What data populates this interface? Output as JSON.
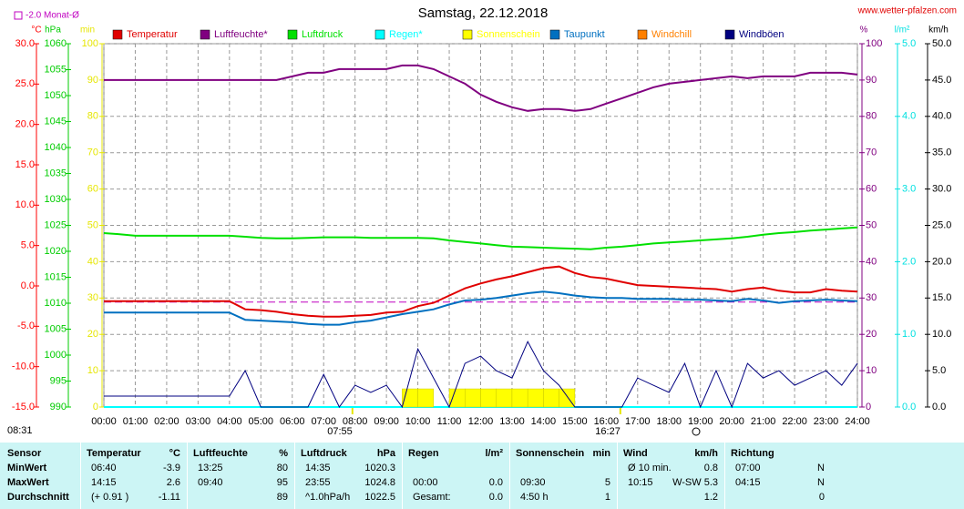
{
  "chart_data": {
    "type": "line",
    "title": "Samstag, 22.12.2018",
    "source": "www.wetter-pfalzen.com",
    "monthly_avg": {
      "value": -2.0,
      "label": "-2.0 Monat-Ø"
    },
    "corner_time": "08:31",
    "sun_markers": [
      {
        "value": 7.9167,
        "label": "07:55"
      },
      {
        "value": 16.45,
        "label": "16:27"
      }
    ],
    "xlim": [
      0,
      24
    ],
    "xticks": [
      {
        "value": 0,
        "label": "00:00"
      },
      {
        "value": 1,
        "label": "01:00"
      },
      {
        "value": 2,
        "label": "02:00"
      },
      {
        "value": 3,
        "label": "03:00"
      },
      {
        "value": 4,
        "label": "04:00"
      },
      {
        "value": 5,
        "label": "05:00"
      },
      {
        "value": 6,
        "label": "06:00"
      },
      {
        "value": 7,
        "label": "07:00"
      },
      {
        "value": 8,
        "label": "08:00"
      },
      {
        "value": 9,
        "label": "09:00"
      },
      {
        "value": 10,
        "label": "10:00"
      },
      {
        "value": 11,
        "label": "11:00"
      },
      {
        "value": 12,
        "label": "12:00"
      },
      {
        "value": 13,
        "label": "13:00"
      },
      {
        "value": 14,
        "label": "14:00"
      },
      {
        "value": 15,
        "label": "15:00"
      },
      {
        "value": 16,
        "label": "16:00"
      },
      {
        "value": 17,
        "label": "17:00"
      },
      {
        "value": 18,
        "label": "18:00"
      },
      {
        "value": 19,
        "label": "19:00"
      },
      {
        "value": 20,
        "label": "20:00"
      },
      {
        "value": 21,
        "label": "21:00"
      },
      {
        "value": 22,
        "label": "22:00"
      },
      {
        "value": 23,
        "label": "23:00"
      },
      {
        "value": 24,
        "label": "24:00"
      }
    ],
    "grid": true,
    "axes": {
      "temp": {
        "label": "°C",
        "color": "#ff0000",
        "lim": [
          -15,
          30
        ],
        "ticks": [
          {
            "value": -15,
            "label": "-15.0"
          },
          {
            "value": -10,
            "label": "-10.0"
          },
          {
            "value": -5,
            "label": "-5.0"
          },
          {
            "value": 0,
            "label": "0.0"
          },
          {
            "value": 5,
            "label": "5.0"
          },
          {
            "value": 10,
            "label": "10.0"
          },
          {
            "value": 15,
            "label": "15.0"
          },
          {
            "value": 20,
            "label": "20.0"
          },
          {
            "value": 25,
            "label": "25.0"
          },
          {
            "value": 30,
            "label": "30.0"
          }
        ]
      },
      "hpa": {
        "label": "hPa",
        "color": "#00cc00",
        "lim": [
          990,
          1060
        ],
        "ticks": [
          990,
          995,
          1000,
          1005,
          1010,
          1015,
          1020,
          1025,
          1030,
          1035,
          1040,
          1045,
          1050,
          1055,
          1060
        ]
      },
      "min": {
        "label": "min",
        "color": "#e6e600",
        "lim": [
          0,
          100
        ],
        "ticks": [
          0,
          10,
          20,
          30,
          40,
          50,
          60,
          70,
          80,
          90,
          100
        ]
      },
      "pct": {
        "label": "%",
        "color": "#800080",
        "lim": [
          0,
          100
        ],
        "ticks": [
          0,
          10,
          20,
          30,
          40,
          50,
          60,
          70,
          80,
          90,
          100
        ]
      },
      "rain": {
        "label": "l/m²",
        "color": "#00e0e0",
        "lim": [
          0,
          5
        ],
        "ticks": [
          {
            "value": 0,
            "label": "0.0"
          },
          {
            "value": 1,
            "label": "1.0"
          },
          {
            "value": 2,
            "label": "2.0"
          },
          {
            "value": 3,
            "label": "3.0"
          },
          {
            "value": 4,
            "label": "4.0"
          },
          {
            "value": 5,
            "label": "5.0"
          }
        ]
      },
      "kmh": {
        "label": "km/h",
        "color": "#000000",
        "lim": [
          0,
          50
        ],
        "ticks": [
          {
            "value": 0,
            "label": "0.0"
          },
          {
            "value": 5,
            "label": "5.0"
          },
          {
            "value": 10,
            "label": "10.0"
          },
          {
            "value": 15,
            "label": "15.0"
          },
          {
            "value": 20,
            "label": "20.0"
          },
          {
            "value": 25,
            "label": "25.0"
          },
          {
            "value": 30,
            "label": "30.0"
          },
          {
            "value": 35,
            "label": "35.0"
          },
          {
            "value": 40,
            "label": "40.0"
          },
          {
            "value": 45,
            "label": "45.0"
          },
          {
            "value": 50,
            "label": "50.0"
          }
        ]
      }
    },
    "x": [
      0,
      0.5,
      1,
      1.5,
      2,
      2.5,
      3,
      3.5,
      4,
      4.5,
      5,
      5.5,
      6,
      6.5,
      7,
      7.5,
      8,
      8.5,
      9,
      9.5,
      10,
      10.5,
      11,
      11.5,
      12,
      12.5,
      13,
      13.5,
      14,
      14.5,
      15,
      15.5,
      16,
      16.5,
      17,
      17.5,
      18,
      18.5,
      19,
      19.5,
      20,
      20.5,
      21,
      21.5,
      22,
      22.5,
      23,
      23.5,
      24
    ],
    "series": [
      {
        "name": "Temperatur",
        "color": "#e00000",
        "axis": "temp",
        "values": [
          -1.9,
          -1.9,
          -1.9,
          -1.9,
          -1.9,
          -1.9,
          -1.9,
          -1.9,
          -1.9,
          -2.9,
          -3.0,
          -3.2,
          -3.5,
          -3.7,
          -3.8,
          -3.8,
          -3.7,
          -3.6,
          -3.3,
          -3.2,
          -2.5,
          -2.1,
          -1.2,
          -0.3,
          0.3,
          0.8,
          1.2,
          1.7,
          2.2,
          2.4,
          1.6,
          1.1,
          0.9,
          0.5,
          0.1,
          0,
          -0.1,
          -0.2,
          -0.3,
          -0.4,
          -0.7,
          -0.4,
          -0.2,
          -0.6,
          -0.8,
          -0.8,
          -0.4,
          -0.6,
          -0.7
        ]
      },
      {
        "name": "Luftfeuchte*",
        "color": "#800080",
        "axis": "pct",
        "values": [
          90,
          90,
          90,
          90,
          90,
          90,
          90,
          90,
          90,
          90,
          90,
          90,
          91,
          92,
          92,
          93,
          93,
          93,
          93,
          94,
          94,
          93,
          91,
          89,
          86,
          84,
          82.5,
          81.5,
          82,
          82,
          81.5,
          82,
          83.5,
          85,
          86.5,
          88,
          89,
          89.5,
          90,
          90.5,
          91,
          90.5,
          91,
          91,
          91,
          92,
          92,
          92,
          91.5
        ]
      },
      {
        "name": "Luftdruck",
        "color": "#00e000",
        "axis": "hpa",
        "values": [
          1023.5,
          1023.3,
          1023.0,
          1023.0,
          1023.0,
          1023.0,
          1023.0,
          1023.0,
          1023.0,
          1022.8,
          1022.6,
          1022.5,
          1022.5,
          1022.6,
          1022.7,
          1022.7,
          1022.7,
          1022.6,
          1022.6,
          1022.6,
          1022.6,
          1022.5,
          1022.1,
          1021.8,
          1021.5,
          1021.2,
          1020.9,
          1020.8,
          1020.7,
          1020.6,
          1020.5,
          1020.4,
          1020.7,
          1020.9,
          1021.2,
          1021.5,
          1021.7,
          1021.9,
          1022.1,
          1022.3,
          1022.5,
          1022.8,
          1023.2,
          1023.5,
          1023.7,
          1024.0,
          1024.2,
          1024.4,
          1024.6
        ]
      },
      {
        "name": "Regen*",
        "color": "#00ffff",
        "axis": "rain",
        "values": [
          0,
          0,
          0,
          0,
          0,
          0,
          0,
          0,
          0,
          0,
          0,
          0,
          0,
          0,
          0,
          0,
          0,
          0,
          0,
          0,
          0,
          0,
          0,
          0,
          0,
          0,
          0,
          0,
          0,
          0,
          0,
          0,
          0,
          0,
          0,
          0,
          0,
          0,
          0,
          0,
          0,
          0,
          0,
          0,
          0,
          0,
          0,
          0,
          0
        ]
      },
      {
        "name": "Sonnenschein",
        "color": "#ffff00",
        "axis": "min",
        "kind": "bar",
        "values": [
          0,
          0,
          0,
          0,
          0,
          0,
          0,
          0,
          0,
          0,
          0,
          0,
          0,
          0,
          0,
          0,
          0,
          0,
          0,
          5,
          5,
          0,
          5,
          5,
          5,
          5,
          5,
          5,
          5,
          5,
          0,
          0,
          0,
          0,
          0,
          0,
          0,
          0,
          0,
          0,
          0,
          0,
          0,
          0,
          0,
          0,
          0,
          0,
          0
        ]
      },
      {
        "name": "Taupunkt",
        "color": "#0070c0",
        "axis": "temp",
        "values": [
          -3.3,
          -3.3,
          -3.3,
          -3.3,
          -3.3,
          -3.3,
          -3.3,
          -3.3,
          -3.3,
          -4.2,
          -4.3,
          -4.4,
          -4.5,
          -4.7,
          -4.8,
          -4.8,
          -4.5,
          -4.3,
          -3.9,
          -3.5,
          -3.2,
          -2.9,
          -2.3,
          -1.8,
          -1.7,
          -1.5,
          -1.2,
          -0.9,
          -0.7,
          -0.9,
          -1.2,
          -1.4,
          -1.5,
          -1.5,
          -1.6,
          -1.6,
          -1.6,
          -1.7,
          -1.7,
          -1.8,
          -1.9,
          -1.6,
          -1.8,
          -2.1,
          -1.9,
          -1.8,
          -1.7,
          -1.8,
          -1.9
        ]
      },
      {
        "name": "Windchill",
        "color": "#ff8000",
        "axis": "temp"
      },
      {
        "name": "Windböen",
        "color": "#000080",
        "axis": "kmh",
        "values": [
          1.5,
          1.5,
          1.5,
          1.5,
          1.5,
          1.5,
          1.5,
          1.5,
          1.5,
          5,
          0,
          0,
          0,
          0,
          4.5,
          0,
          3,
          2,
          3,
          0,
          8,
          4,
          0,
          6,
          7,
          5,
          4,
          9,
          5,
          3,
          0,
          0,
          0,
          0,
          4,
          3,
          2,
          6,
          0,
          5,
          0,
          6,
          4,
          5,
          3,
          4,
          5,
          3,
          6
        ]
      }
    ]
  },
  "table": {
    "header": [
      {
        "name": "Sensor"
      },
      {
        "name": "Temperatur",
        "unit": "°C"
      },
      {
        "name": "Luftfeuchte",
        "unit": "%"
      },
      {
        "name": "Luftdruck",
        "unit": "hPa"
      },
      {
        "name": "Regen",
        "unit": "l/m²"
      },
      {
        "name": "Sonnenschein",
        "unit": "min"
      },
      {
        "name": "Wind",
        "unit": "km/h"
      },
      {
        "name": "Richtung"
      }
    ],
    "rows": [
      {
        "label": "MinWert",
        "cells": [
          [
            "06:40",
            "-3.9"
          ],
          [
            "13:25",
            "80"
          ],
          [
            "14:35",
            "1020.3"
          ],
          [
            null,
            null
          ],
          [
            null,
            null
          ],
          [
            "Ø 10 min.",
            "0.8"
          ],
          [
            "07:00",
            "N"
          ]
        ]
      },
      {
        "label": "MaxWert",
        "cells": [
          [
            "14:15",
            "2.6"
          ],
          [
            "09:40",
            "95"
          ],
          [
            "23:55",
            "1024.8"
          ],
          [
            "00:00",
            "0.0"
          ],
          [
            "09:30",
            "5"
          ],
          [
            "10:15",
            "W-SW 5.3"
          ],
          [
            "04:15",
            "N"
          ]
        ]
      },
      {
        "label": "Durchschnitt",
        "cells": [
          [
            "(+ 0.91 )",
            "-1.11"
          ],
          [
            null,
            "89"
          ],
          [
            "^1.0hPa/h",
            "1022.5"
          ],
          [
            "Gesamt:",
            "0.0"
          ],
          [
            "4:50 h",
            "1"
          ],
          [
            null,
            "1.2"
          ],
          [
            null,
            "0"
          ]
        ]
      }
    ]
  }
}
